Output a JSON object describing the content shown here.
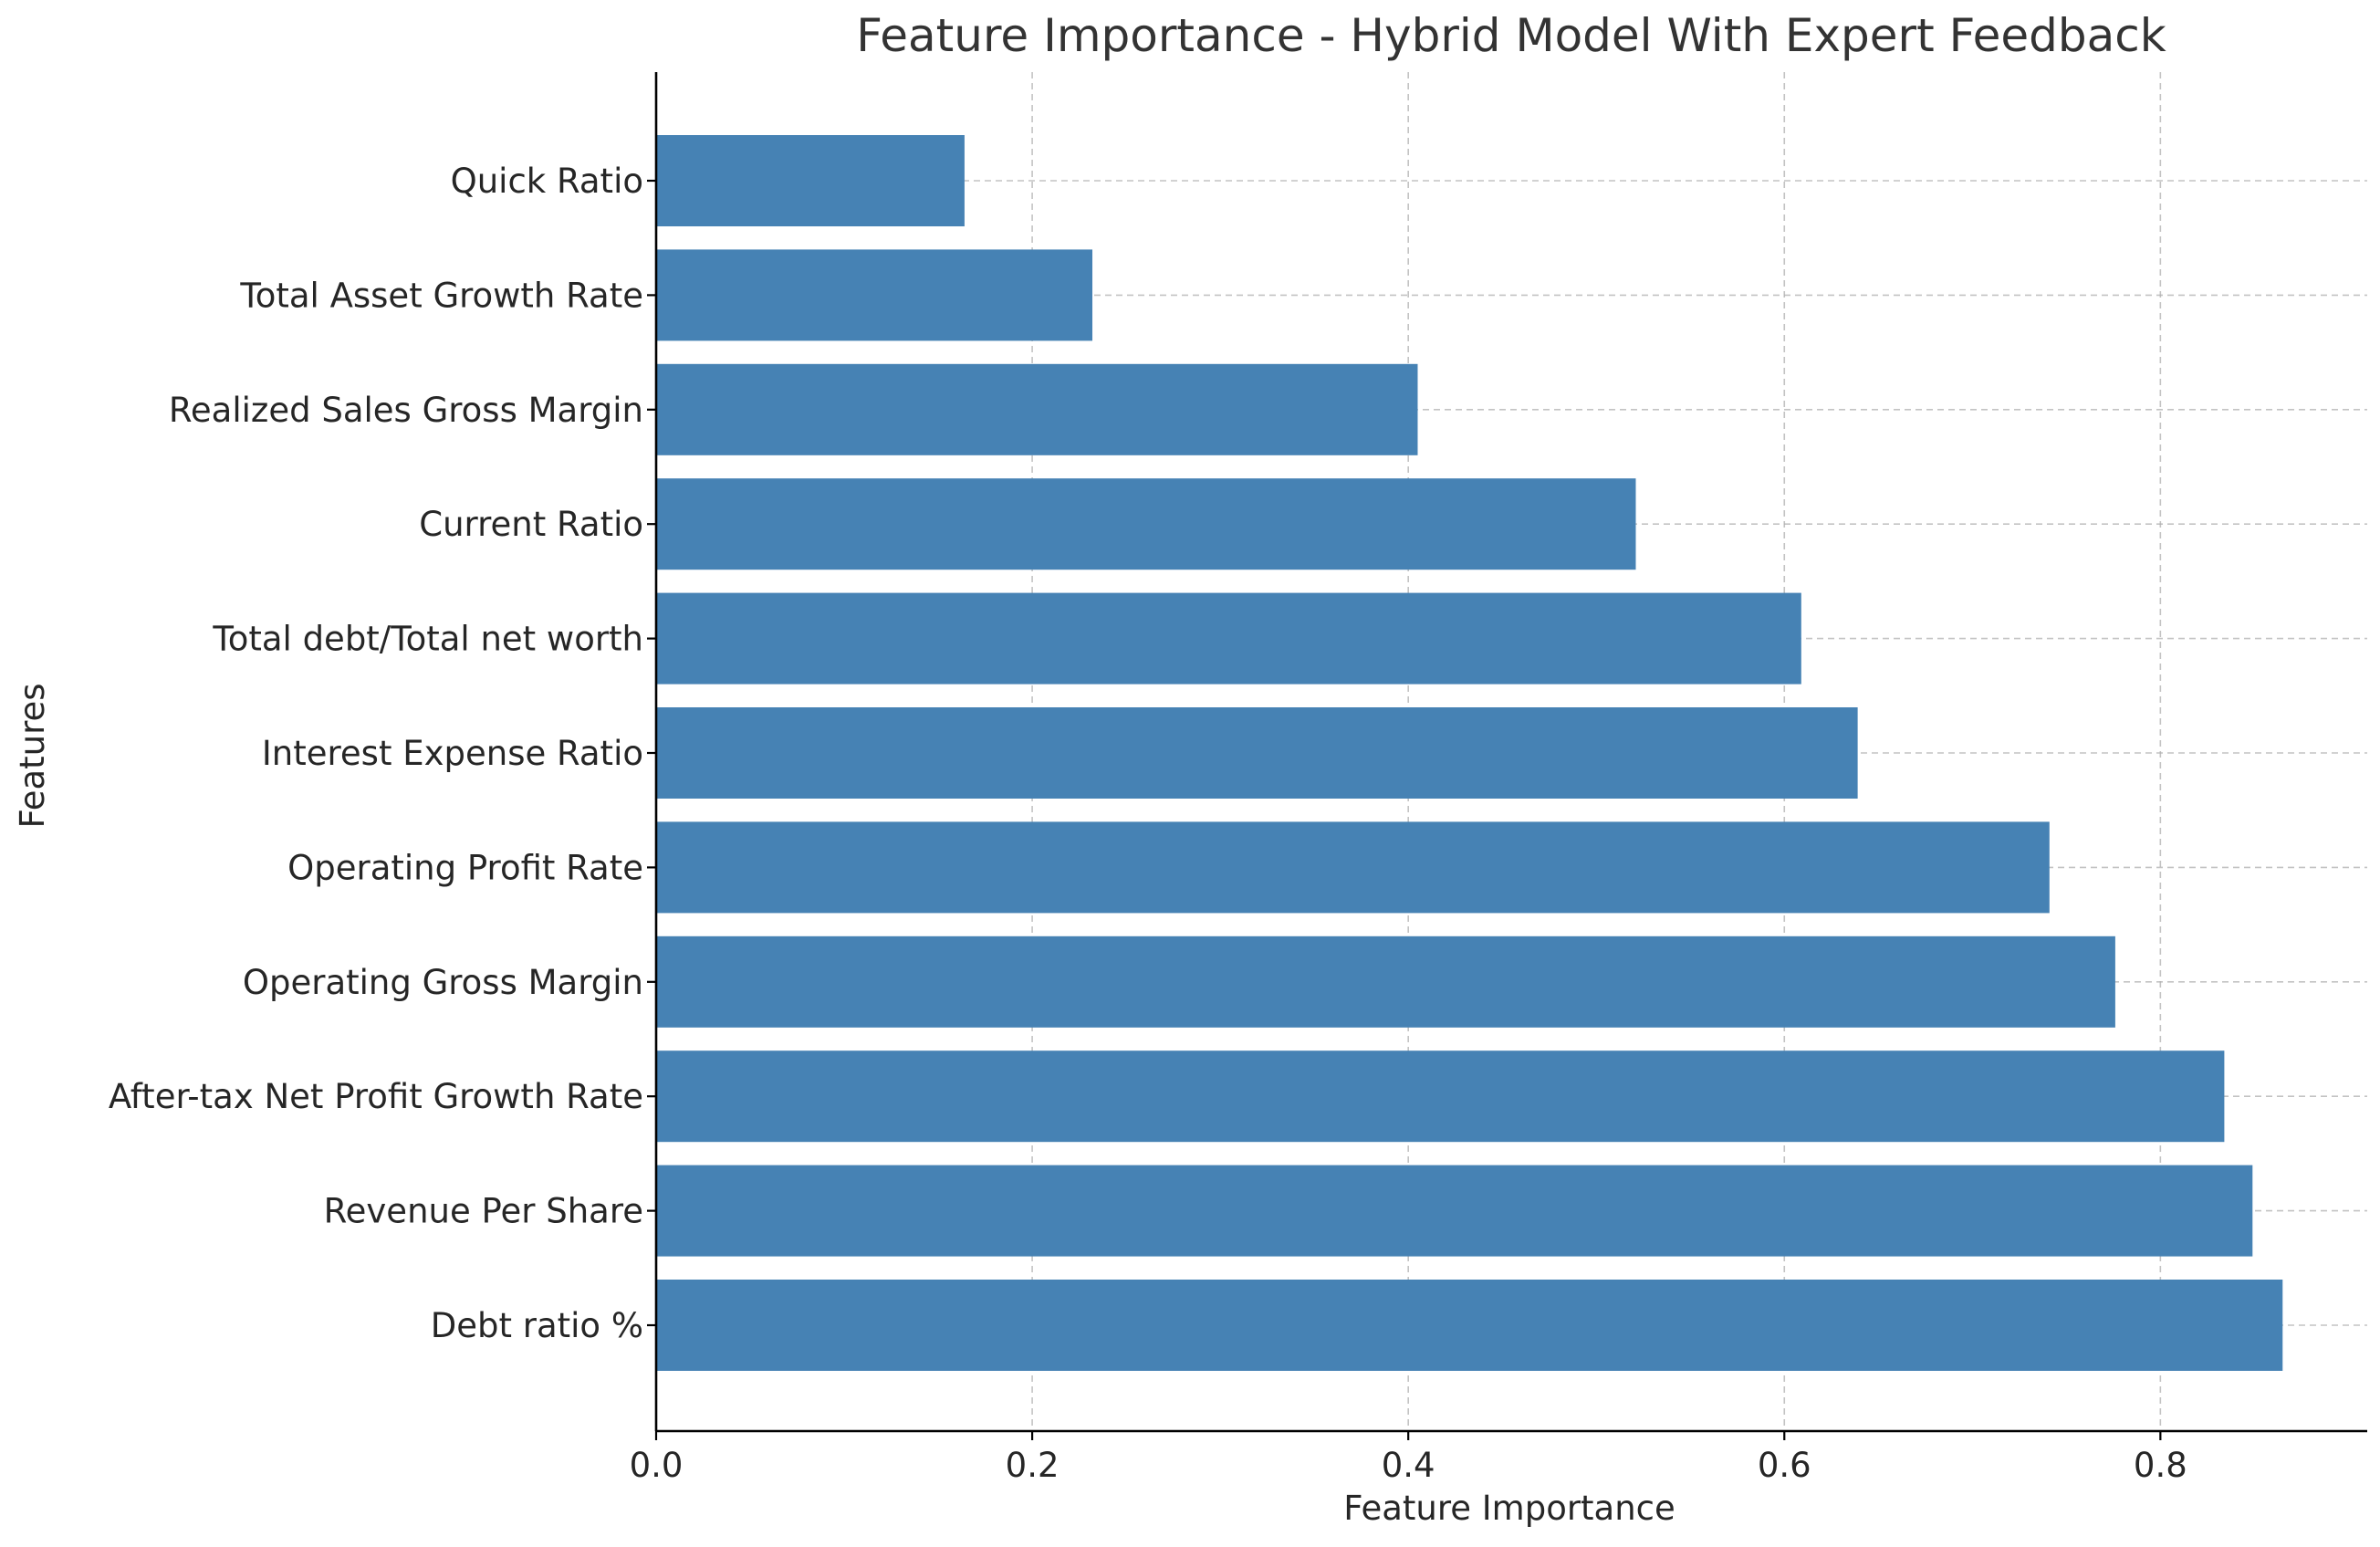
{
  "chart_data": {
    "type": "bar",
    "orientation": "horizontal",
    "title": "Feature Importance - Hybrid Model With Expert Feedback",
    "xlabel": "Feature Importance",
    "ylabel": "Features",
    "categories": [
      "Debt ratio %",
      "Revenue Per Share",
      "After-tax Net Profit Growth Rate",
      "Operating Gross Margin",
      "Operating Profit Rate",
      "Interest Expense Ratio",
      "Total debt/Total net worth",
      "Current Ratio",
      "Realized Sales Gross Margin",
      "Total Asset Growth Rate",
      "Quick Ratio"
    ],
    "values": [
      0.865,
      0.849,
      0.834,
      0.776,
      0.741,
      0.639,
      0.609,
      0.521,
      0.405,
      0.232,
      0.164
    ],
    "xlim": [
      0,
      0.91
    ],
    "xticks": [
      0.0,
      0.2,
      0.4,
      0.6,
      0.8
    ],
    "xtick_labels": [
      "0.0",
      "0.2",
      "0.4",
      "0.6",
      "0.8"
    ],
    "grid": true,
    "bar_color": "#4682B4"
  }
}
